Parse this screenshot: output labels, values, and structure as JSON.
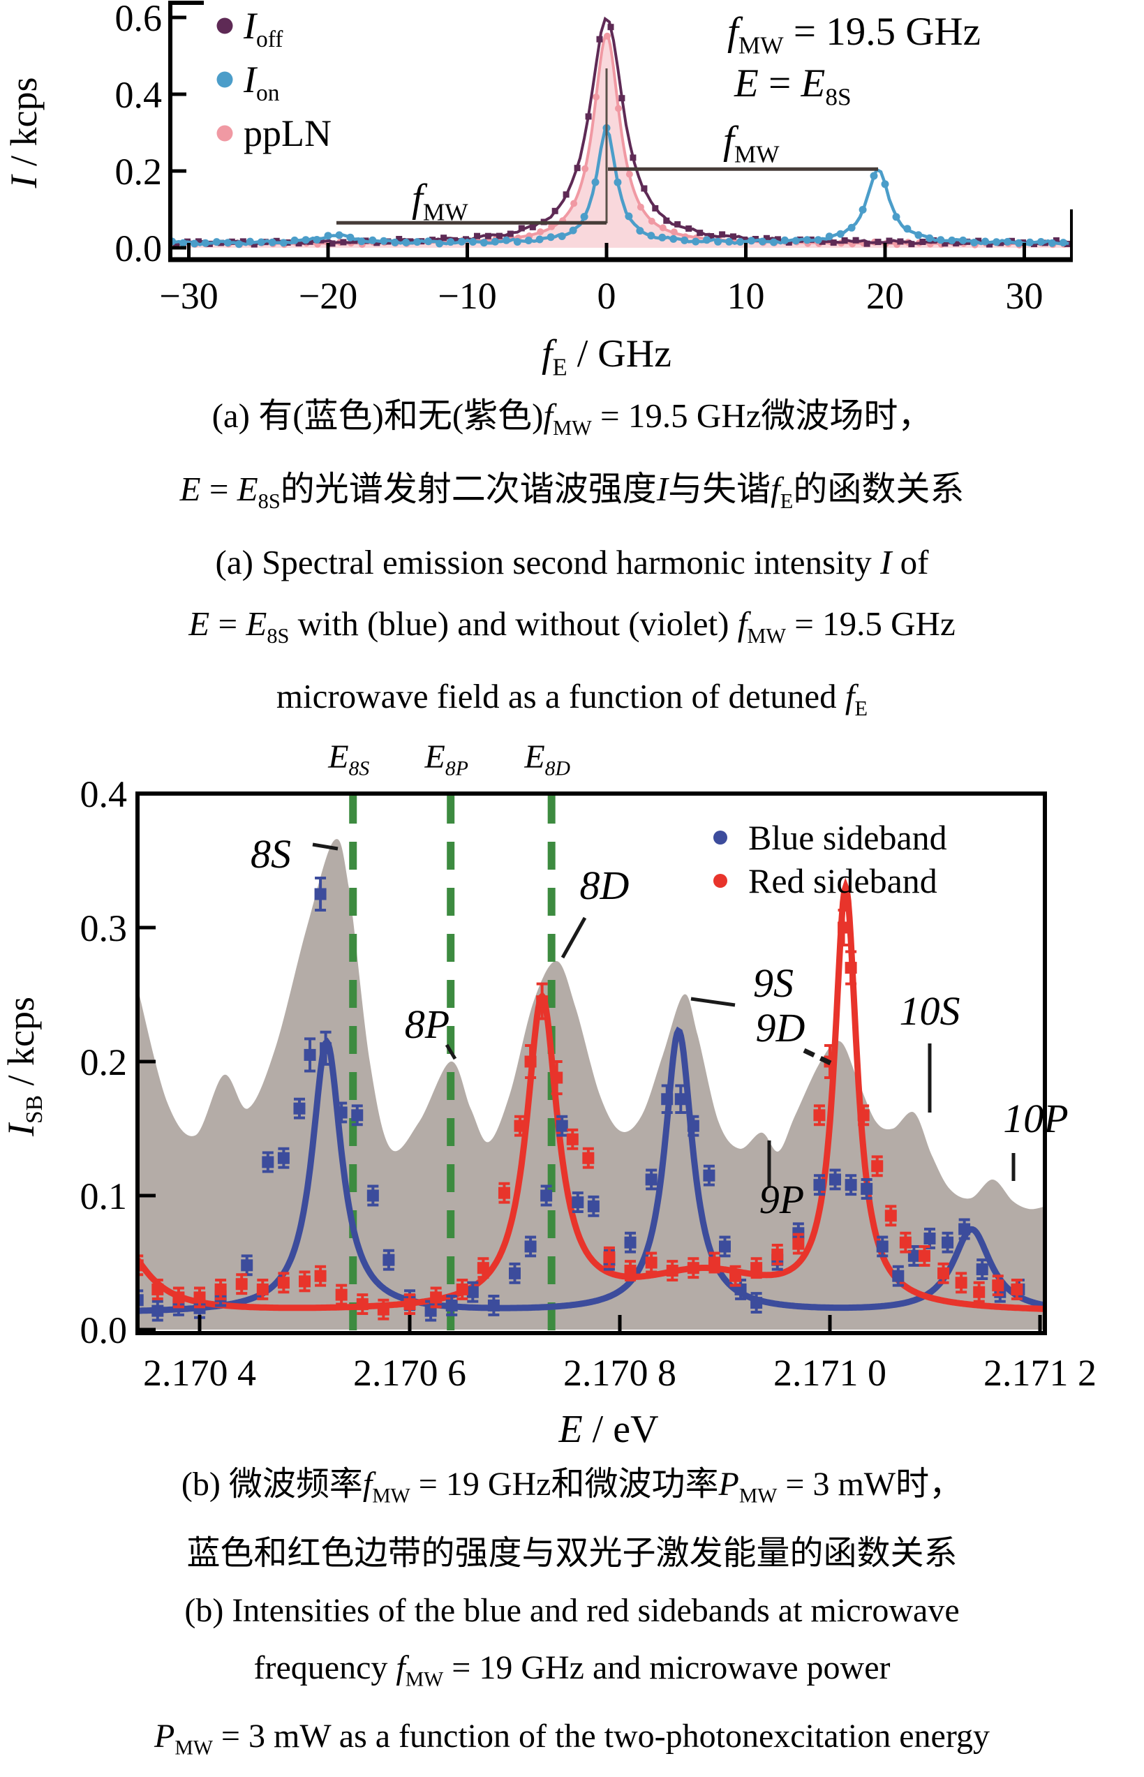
{
  "captions": {
    "a": [
      [
        {
          "v": "(a) 有(蓝色)和无(紫色)"
        },
        {
          "i": "f"
        },
        {
          "sub": "MW"
        },
        {
          "v": " = 19.5 GHz微波场时，"
        }
      ],
      [
        {
          "i": "E"
        },
        {
          "v": " = "
        },
        {
          "i": "E"
        },
        {
          "sub": "8S"
        },
        {
          "v": "的光谱发射二次谐波强度"
        },
        {
          "i": "I"
        },
        {
          "v": "与失谐"
        },
        {
          "i": "f"
        },
        {
          "sub": "E"
        },
        {
          "v": "的函数关系"
        }
      ],
      [
        {
          "v": "(a) Spectral emission second harmonic intensity "
        },
        {
          "i": "I"
        },
        {
          "v": " of"
        }
      ],
      [
        {
          "i": "E"
        },
        {
          "v": " = "
        },
        {
          "i": "E"
        },
        {
          "sub": "8S"
        },
        {
          "v": " with (blue) and without (violet) "
        },
        {
          "i": "f"
        },
        {
          "sub": "MW"
        },
        {
          "v": " = 19.5 GHz"
        }
      ],
      [
        {
          "v": "microwave field as a function of detuned "
        },
        {
          "i": "f"
        },
        {
          "sub": "E"
        }
      ]
    ],
    "b": [
      [
        {
          "v": "(b) 微波频率"
        },
        {
          "i": "f"
        },
        {
          "sub": "MW"
        },
        {
          "v": " = 19 GHz和微波功率"
        },
        {
          "i": "P"
        },
        {
          "sub": "MW"
        },
        {
          "v": " = 3 mW时，"
        }
      ],
      [
        {
          "v": "蓝色和红色边带的强度与双光子激发能量的函数关系"
        }
      ],
      [
        {
          "v": "(b) Intensities of the blue and red sidebands at microwave"
        }
      ],
      [
        {
          "v": "frequency "
        },
        {
          "i": "f"
        },
        {
          "sub": "MW"
        },
        {
          "v": " = 19 GHz and microwave power"
        }
      ],
      [
        {
          "i": "P"
        },
        {
          "sub": "MW"
        },
        {
          "v": " = 3 mW as a function of the two-photonexcitation energy"
        }
      ]
    ]
  },
  "chart_data": [
    {
      "type": "line",
      "panel": "a",
      "xlabel_rich": [
        {
          "i": "f"
        },
        {
          "sub": "E"
        },
        {
          "v": " / GHz"
        }
      ],
      "ylabel_rich": [
        {
          "i": "I"
        },
        {
          "v": " / kcps"
        }
      ],
      "xlim": [
        -31.3,
        33.5
      ],
      "ylim": [
        -0.03,
        0.64
      ],
      "xticks": [
        {
          "v": -30,
          "label": "−30"
        },
        {
          "v": -20,
          "label": "−20"
        },
        {
          "v": -10,
          "label": "−10"
        },
        {
          "v": 0,
          "label": "0"
        },
        {
          "v": 10,
          "label": "10"
        },
        {
          "v": 20,
          "label": "20"
        },
        {
          "v": 30,
          "label": "30"
        }
      ],
      "yticks": [
        {
          "v": 0.0,
          "label": "0.0"
        },
        {
          "v": 0.2,
          "label": "0.2"
        },
        {
          "v": 0.4,
          "label": "0.4"
        },
        {
          "v": 0.6,
          "label": "0.6"
        }
      ],
      "legend": [
        {
          "label_rich": [
            {
              "i": "I"
            },
            {
              "sub": "off"
            }
          ],
          "color": "#5e2a55",
          "marker": "circle"
        },
        {
          "label_rich": [
            {
              "i": "I"
            },
            {
              "sub": "on"
            }
          ],
          "color": "#4b9dc9",
          "marker": "circle"
        },
        {
          "label_rich": [
            {
              "v": "ppLN"
            }
          ],
          "color": "#f099a3",
          "marker": "circle"
        }
      ],
      "annotations": {
        "fmw_value_rich": [
          {
            "i": "f"
          },
          {
            "sub": "MW"
          },
          {
            "v": " = 19.5 GHz"
          }
        ],
        "energy_rich": [
          {
            "i": "E"
          },
          {
            "v": " = "
          },
          {
            "i": "E"
          },
          {
            "sub": "8S"
          }
        ],
        "fmw_rich": [
          {
            "i": "f"
          },
          {
            "sub": "MW"
          }
        ]
      },
      "mw_span_lines": [
        {
          "from_ghz": 0,
          "to_ghz": 19.5,
          "at_kcps": 0.205,
          "label": "f_MW upper"
        },
        {
          "from_ghz": -19.5,
          "to_ghz": 0,
          "at_kcps": 0.065,
          "label": "f_MW lower"
        }
      ],
      "series": [
        {
          "name": "ppLN",
          "color": "#f099a3",
          "fill": "#f9d8dc",
          "marker": "circle",
          "baseline": 0.01,
          "peaks": [
            {
              "c": 0,
              "h": 0.545,
              "w": 1.15
            }
          ]
        },
        {
          "name": "I_off",
          "color": "#5e2a55",
          "marker": "square",
          "baseline": 0.012,
          "peaks": [
            {
              "c": 0,
              "h": 0.585,
              "w": 1.5
            }
          ]
        },
        {
          "name": "I_on",
          "color": "#4b9dc9",
          "marker": "circle",
          "baseline": 0.012,
          "peaks": [
            {
              "c": 0,
              "h": 0.3,
              "w": 0.85
            },
            {
              "c": 19.5,
              "h": 0.19,
              "w": 1.0
            },
            {
              "c": -19.5,
              "h": 0.02,
              "w": 1.5
            }
          ]
        }
      ],
      "sample_step_ghz": 0.8
    },
    {
      "type": "line+scatter",
      "panel": "b",
      "xlabel_rich": [
        {
          "i": "E"
        },
        {
          "v": " / eV"
        }
      ],
      "ylabel_rich": [
        {
          "i": "I"
        },
        {
          "sub": "SB"
        },
        {
          "v": " / kcps"
        }
      ],
      "xlim": [
        2.170341,
        2.171205
      ],
      "ylim": [
        -0.0026,
        0.4
      ],
      "xticks": [
        {
          "v": 2.1704,
          "label": "2.170 4"
        },
        {
          "v": 2.1706,
          "label": "2.170 6"
        },
        {
          "v": 2.1708,
          "label": "2.170 8"
        },
        {
          "v": 2.171,
          "label": "2.171 0"
        },
        {
          "v": 2.1712,
          "label": "2.171 2"
        }
      ],
      "yticks": [
        {
          "v": 0.0,
          "label": "0.0"
        },
        {
          "v": 0.1,
          "label": "0.1"
        },
        {
          "v": 0.2,
          "label": "0.2"
        },
        {
          "v": 0.3,
          "label": "0.3"
        },
        {
          "v": 0.4,
          "label": "0.4"
        }
      ],
      "reference_lines": [
        {
          "ev": 2.170546,
          "color": "#3d8b40",
          "label_rich": [
            {
              "i": "E"
            },
            {
              "subi": "8S"
            }
          ]
        },
        {
          "ev": 2.170639,
          "color": "#3d8b40",
          "label_rich": [
            {
              "i": "E"
            },
            {
              "subi": "8P"
            }
          ]
        },
        {
          "ev": 2.170735,
          "color": "#3d8b40",
          "label_rich": [
            {
              "i": "E"
            },
            {
              "subi": "8D"
            }
          ]
        }
      ],
      "state_labels": [
        "8S",
        "8P",
        "8D",
        "9S",
        "9D",
        "9P",
        "10S",
        "10P"
      ],
      "background_spectrum": {
        "name": "two-photon excitation spectrum",
        "color": "#b4aca7",
        "points": [
          [
            2.170341,
            0.255
          ],
          [
            2.170369,
            0.17
          ],
          [
            2.170396,
            0.145
          ],
          [
            2.170423,
            0.19
          ],
          [
            2.170446,
            0.165
          ],
          [
            2.170472,
            0.21
          ],
          [
            2.170502,
            0.3
          ],
          [
            2.170528,
            0.365
          ],
          [
            2.170542,
            0.33
          ],
          [
            2.170562,
            0.2
          ],
          [
            2.170582,
            0.135
          ],
          [
            2.170609,
            0.155
          ],
          [
            2.170639,
            0.2
          ],
          [
            2.170658,
            0.165
          ],
          [
            2.170675,
            0.14
          ],
          [
            2.170695,
            0.175
          ],
          [
            2.170718,
            0.245
          ],
          [
            2.17074,
            0.275
          ],
          [
            2.170758,
            0.24
          ],
          [
            2.170781,
            0.175
          ],
          [
            2.170801,
            0.148
          ],
          [
            2.170821,
            0.16
          ],
          [
            2.170841,
            0.205
          ],
          [
            2.170861,
            0.25
          ],
          [
            2.170874,
            0.22
          ],
          [
            2.170894,
            0.155
          ],
          [
            2.170914,
            0.135
          ],
          [
            2.170935,
            0.147
          ],
          [
            2.170951,
            0.133
          ],
          [
            2.170967,
            0.16
          ],
          [
            2.170991,
            0.2
          ],
          [
            2.17101,
            0.215
          ],
          [
            2.171027,
            0.185
          ],
          [
            2.171044,
            0.155
          ],
          [
            2.17106,
            0.15
          ],
          [
            2.17108,
            0.162
          ],
          [
            2.171097,
            0.13
          ],
          [
            2.171114,
            0.105
          ],
          [
            2.171134,
            0.098
          ],
          [
            2.171155,
            0.112
          ],
          [
            2.171174,
            0.096
          ],
          [
            2.17119,
            0.09
          ],
          [
            2.171205,
            0.092
          ]
        ]
      },
      "series": [
        {
          "name": "Blue sideband",
          "color": "#3c4c9c",
          "baseline": 0.012,
          "peaks": [
            {
              "c": 2.170521,
              "h": 0.202,
              "w": 1.7e-05
            },
            {
              "c": 2.170856,
              "h": 0.21,
              "w": 1.6e-05
            },
            {
              "c": 2.171135,
              "h": 0.062,
              "w": 2.2e-05
            }
          ],
          "points": [
            [
              2.170341,
              0.022
            ],
            [
              2.17036,
              0.014
            ],
            [
              2.17038,
              0.018
            ],
            [
              2.1704,
              0.016
            ],
            [
              2.17042,
              0.025
            ],
            [
              2.170445,
              0.048
            ],
            [
              2.170465,
              0.125
            ],
            [
              2.17048,
              0.128
            ],
            [
              2.170495,
              0.165
            ],
            [
              2.170505,
              0.205,
              0.012
            ],
            [
              2.170515,
              0.325,
              0.012
            ],
            [
              2.17052,
              0.21,
              0.012
            ],
            [
              2.170535,
              0.162
            ],
            [
              2.17055,
              0.16
            ],
            [
              2.170565,
              0.1
            ],
            [
              2.17058,
              0.052
            ],
            [
              2.1706,
              0.022
            ],
            [
              2.17062,
              0.014
            ],
            [
              2.17064,
              0.018
            ],
            [
              2.17066,
              0.028
            ],
            [
              2.17068,
              0.018
            ],
            [
              2.1707,
              0.042
            ],
            [
              2.170715,
              0.062
            ],
            [
              2.17073,
              0.1
            ],
            [
              2.170745,
              0.152
            ],
            [
              2.17076,
              0.095
            ],
            [
              2.170775,
              0.092
            ],
            [
              2.17079,
              0.052
            ],
            [
              2.17081,
              0.065
            ],
            [
              2.17083,
              0.112
            ],
            [
              2.170845,
              0.172,
              0.01
            ],
            [
              2.170858,
              0.172,
              0.01
            ],
            [
              2.17087,
              0.152
            ],
            [
              2.170885,
              0.115
            ],
            [
              2.1709,
              0.062
            ],
            [
              2.170915,
              0.03
            ],
            [
              2.17093,
              0.02
            ],
            [
              2.17095,
              0.052
            ],
            [
              2.17097,
              0.072
            ],
            [
              2.17099,
              0.108
            ],
            [
              2.171005,
              0.112
            ],
            [
              2.17102,
              0.108
            ],
            [
              2.171035,
              0.105
            ],
            [
              2.17105,
              0.062
            ],
            [
              2.171065,
              0.04
            ],
            [
              2.17108,
              0.055
            ],
            [
              2.171095,
              0.068
            ],
            [
              2.171112,
              0.065
            ],
            [
              2.171128,
              0.075
            ],
            [
              2.171145,
              0.045
            ],
            [
              2.171162,
              0.028
            ],
            [
              2.17118,
              0.03
            ]
          ]
        },
        {
          "name": "Red sideband",
          "color": "#e8342b",
          "baseline": 0.012,
          "peaks": [
            {
              "c": 2.170325,
              "h": 0.05,
              "w": 3e-05
            },
            {
              "c": 2.170726,
              "h": 0.23,
              "w": 1.8e-05
            },
            {
              "c": 2.171015,
              "h": 0.31,
              "w": 1.3e-05
            },
            {
              "c": 2.17088,
              "h": 0.028,
              "w": 8e-05
            }
          ],
          "points": [
            [
              2.170341,
              0.048
            ],
            [
              2.17036,
              0.03
            ],
            [
              2.17038,
              0.024
            ],
            [
              2.1704,
              0.024
            ],
            [
              2.17042,
              0.03
            ],
            [
              2.17044,
              0.034
            ],
            [
              2.17046,
              0.03
            ],
            [
              2.17048,
              0.035
            ],
            [
              2.1705,
              0.036
            ],
            [
              2.170515,
              0.04
            ],
            [
              2.170535,
              0.026
            ],
            [
              2.170555,
              0.019
            ],
            [
              2.170575,
              0.015
            ],
            [
              2.1706,
              0.019
            ],
            [
              2.170625,
              0.024
            ],
            [
              2.17065,
              0.03
            ],
            [
              2.17067,
              0.046
            ],
            [
              2.17069,
              0.102
            ],
            [
              2.170705,
              0.152
            ],
            [
              2.170715,
              0.2,
              0.012
            ],
            [
              2.170726,
              0.245,
              0.013
            ],
            [
              2.17074,
              0.188,
              0.012
            ],
            [
              2.170755,
              0.142
            ],
            [
              2.17077,
              0.128
            ],
            [
              2.17079,
              0.054
            ],
            [
              2.17081,
              0.044
            ],
            [
              2.17083,
              0.05
            ],
            [
              2.17085,
              0.044
            ],
            [
              2.17087,
              0.046
            ],
            [
              2.17089,
              0.05
            ],
            [
              2.17091,
              0.04
            ],
            [
              2.17093,
              0.046
            ],
            [
              2.17095,
              0.056
            ],
            [
              2.17097,
              0.064
            ],
            [
              2.17099,
              0.16
            ],
            [
              2.171,
              0.2,
              0.012
            ],
            [
              2.171013,
              0.3,
              0.013
            ],
            [
              2.17102,
              0.27,
              0.012
            ],
            [
              2.171032,
              0.16
            ],
            [
              2.171045,
              0.122
            ],
            [
              2.171058,
              0.085
            ],
            [
              2.171072,
              0.065
            ],
            [
              2.17109,
              0.055
            ],
            [
              2.171108,
              0.042
            ],
            [
              2.171125,
              0.035
            ],
            [
              2.171142,
              0.028
            ],
            [
              2.17116,
              0.033
            ],
            [
              2.171178,
              0.03
            ]
          ]
        }
      ]
    }
  ]
}
